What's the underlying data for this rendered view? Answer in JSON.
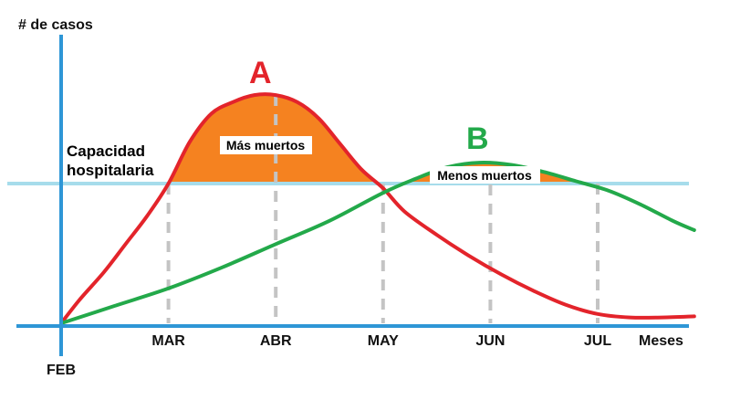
{
  "chart_data": {
    "type": "line",
    "ylabel": "# de casos",
    "xlabel": "Meses",
    "categories": [
      "FEB",
      "MAR",
      "ABR",
      "MAY",
      "JUN",
      "JUL"
    ],
    "x_range": [
      0,
      6
    ],
    "ylim": [
      0,
      100
    ],
    "capacity": {
      "label_line1": "Capacidad",
      "label_line2": "hospitalaria",
      "value": 60
    },
    "series": [
      {
        "name": "A",
        "color": "#e3242b",
        "x": [
          0,
          0.17,
          0.4,
          0.6,
          0.8,
          1.0,
          1.2,
          1.4,
          1.6,
          1.8,
          2.0,
          2.2,
          2.4,
          2.6,
          2.8,
          3.0,
          3.2,
          3.5,
          3.8,
          4.1,
          4.4,
          4.7,
          5.0,
          5.3,
          5.6,
          5.9
        ],
        "y": [
          0,
          10,
          22,
          34,
          46,
          60,
          78,
          90,
          95,
          98,
          98,
          95,
          88,
          77,
          66,
          58,
          48,
          38,
          29,
          21,
          14,
          8,
          4,
          2.5,
          2.5,
          3
        ]
      },
      {
        "name": "B",
        "color": "#23a94a",
        "x": [
          0,
          0.5,
          1.0,
          1.5,
          2.0,
          2.5,
          3.0,
          3.3,
          3.6,
          3.9,
          4.2,
          4.5,
          4.8,
          5.1,
          5.4,
          5.7,
          5.9
        ],
        "y": [
          0,
          7.5,
          15,
          24,
          34,
          44,
          56,
          62,
          67,
          69,
          68,
          65,
          61,
          57,
          51,
          44,
          40
        ]
      }
    ],
    "annotations": [
      {
        "text": "Más muertos"
      },
      {
        "text": "Menos muertos"
      }
    ]
  }
}
